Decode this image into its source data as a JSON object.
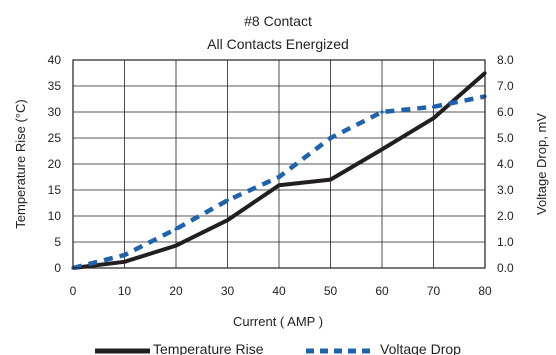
{
  "chart_data": {
    "type": "line",
    "title": "#8 Contact",
    "subtitle": "All Contacts Energized",
    "xlabel": "Current ( AMP )",
    "ylabel_left": "Temperature Rise  (°C)",
    "ylabel_right": "Voltage Drop, mV",
    "xlim": [
      0,
      80
    ],
    "ylim_left": [
      0,
      40
    ],
    "ylim_right": [
      0,
      8
    ],
    "x_ticks": [
      "0",
      "10",
      "20",
      "30",
      "40",
      "50",
      "60",
      "70",
      "80"
    ],
    "y_ticks_left": [
      "0",
      "5",
      "10",
      "15",
      "20",
      "25",
      "30",
      "35",
      "40"
    ],
    "y_ticks_right": [
      "0.0",
      "1.0",
      "2.0",
      "3.0",
      "4.0",
      "5.0",
      "6.0",
      "7.0",
      "8.0"
    ],
    "grid": true,
    "legend_position": "bottom",
    "series": [
      {
        "name": "Temperature Rise",
        "axis": "left",
        "color": "#231f20",
        "style": "solid",
        "x": [
          0,
          10,
          20,
          30,
          40,
          50,
          60,
          70,
          80
        ],
        "y": [
          0,
          1.2,
          4.3,
          9.2,
          15.9,
          17.0,
          22.8,
          28.8,
          37.5
        ]
      },
      {
        "name": "Voltage Drop",
        "axis": "right",
        "color": "#1f63ad",
        "style": "dashed",
        "x": [
          0,
          10,
          20,
          30,
          40,
          50,
          60,
          70,
          80
        ],
        "y": [
          0.0,
          0.5,
          1.5,
          2.6,
          3.5,
          5.0,
          6.0,
          6.2,
          6.6
        ]
      }
    ]
  }
}
